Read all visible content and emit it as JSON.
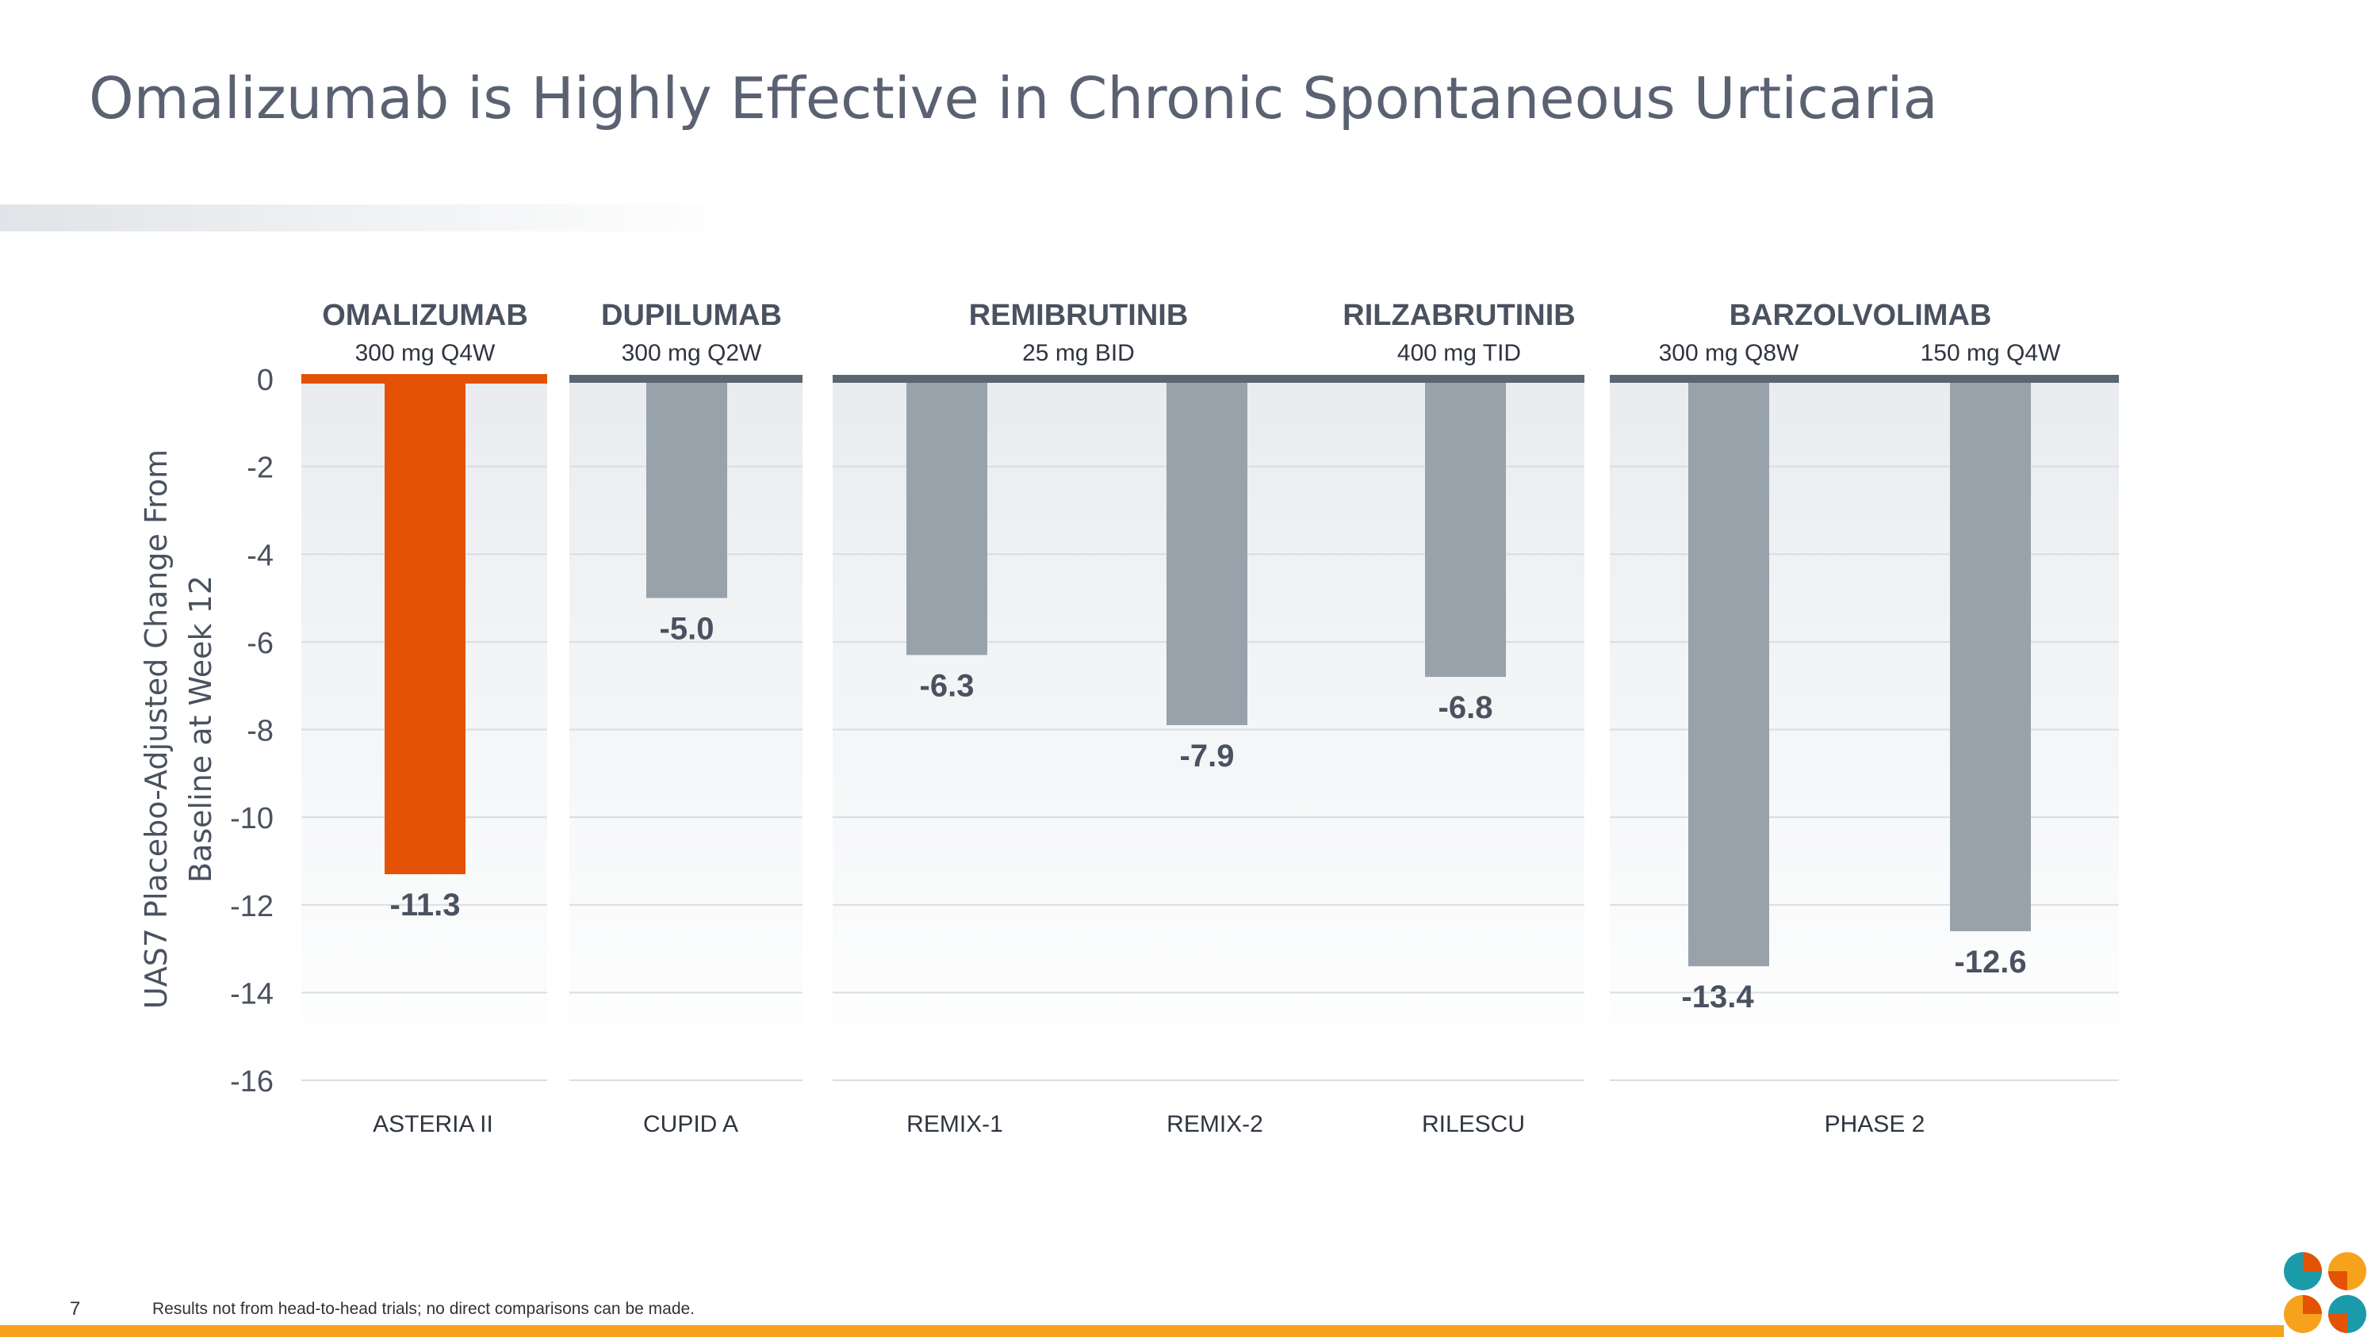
{
  "title": "Omalizumab is Highly Effective in Chronic Spontaneous Urticaria",
  "footer": {
    "page_number": "7",
    "note": "Results not from head-to-head trials; no direct comparisons can be made."
  },
  "colors": {
    "highlight": "#e35205",
    "bar": "#98a2ab",
    "axis_line": "#5c6670",
    "text_dark": "#4a5260",
    "accent_orange": "#f6a21c",
    "logo_teal": "#1b9aaa"
  },
  "chart_data": {
    "type": "bar",
    "ylabel": "UAS7 Placebo-Adjusted Change From Baseline at Week 12",
    "ylabel_lines": [
      "UAS7 Placebo-Adjusted Change From",
      "Baseline at Week 12"
    ],
    "ylim": [
      -16,
      0
    ],
    "yticks": [
      "0",
      "-2",
      "-4",
      "-6",
      "-8",
      "-10",
      "-12",
      "-14",
      "-16"
    ],
    "groups": [
      {
        "drug": "OMALIZUMAB",
        "dose": "300 mg Q4W",
        "trials": [
          "ASTERIA II"
        ],
        "bars": [
          {
            "value": -11.3,
            "label": "-11.3",
            "highlight": true
          }
        ]
      },
      {
        "drug": "DUPILUMAB",
        "dose": "300 mg Q2W",
        "trials": [
          "CUPID A"
        ],
        "bars": [
          {
            "value": -5.0,
            "label": "-5.0",
            "highlight": false
          }
        ]
      },
      {
        "drug": "REMIBRUTINIB",
        "dose": "25 mg BID",
        "trials": [
          "REMIX-1",
          "REMIX-2"
        ],
        "bars": [
          {
            "value": -6.3,
            "label": "-6.3",
            "highlight": false
          },
          {
            "value": -7.9,
            "label": "-7.9",
            "highlight": false
          }
        ]
      },
      {
        "drug": "RILZABRUTINIB",
        "dose": "400 mg TID",
        "trials": [
          "RILESCU"
        ],
        "bars": [
          {
            "value": -6.8,
            "label": "-6.8",
            "highlight": false
          }
        ]
      },
      {
        "drug": "BARZOLVOLIMAB",
        "doses": [
          "300 mg Q8W",
          "150 mg Q4W"
        ],
        "trials": [
          "PHASE 2"
        ],
        "bars": [
          {
            "value": -13.4,
            "label": "-13.4",
            "highlight": false
          },
          {
            "value": -12.6,
            "label": "-12.6",
            "highlight": false
          }
        ]
      }
    ]
  }
}
